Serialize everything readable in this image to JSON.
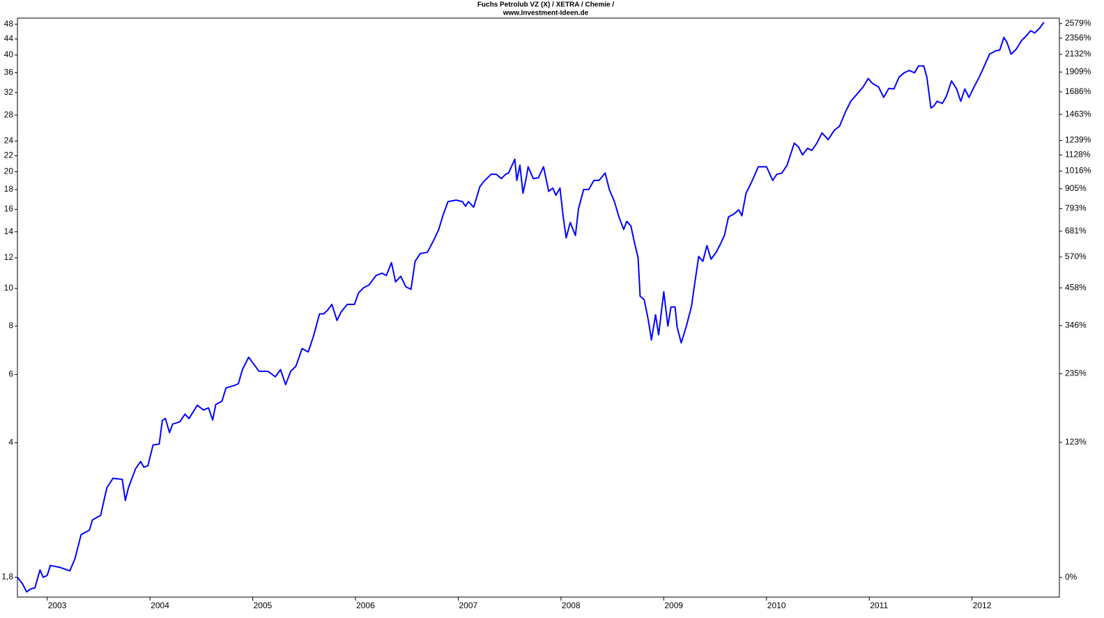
{
  "chart_data": {
    "type": "line",
    "title": "Fuchs Petrolub VZ (X) / XETRA / Chemie /",
    "subtitle": "www.Investment-Ideen.de",
    "x": [
      2002.71,
      2002.76,
      2002.8,
      2002.84,
      2002.88,
      2002.93,
      2002.96,
      2003.0,
      2003.03,
      2003.12,
      2003.22,
      2003.27,
      2003.33,
      2003.41,
      2003.44,
      2003.52,
      2003.58,
      2003.64,
      2003.73,
      2003.76,
      2003.79,
      2003.86,
      2003.91,
      2003.94,
      2003.98,
      2004.03,
      2004.09,
      2004.12,
      2004.15,
      2004.19,
      2004.22,
      2004.29,
      2004.34,
      2004.38,
      2004.46,
      2004.52,
      2004.57,
      2004.61,
      2004.64,
      2004.7,
      2004.74,
      2004.82,
      2004.86,
      2004.9,
      2004.96,
      2005.01,
      2005.06,
      2005.15,
      2005.22,
      2005.27,
      2005.32,
      2005.37,
      2005.42,
      2005.48,
      2005.54,
      2005.59,
      2005.65,
      2005.69,
      2005.73,
      2005.77,
      2005.82,
      2005.86,
      2005.92,
      2005.99,
      2006.03,
      2006.08,
      2006.13,
      2006.2,
      2006.26,
      2006.3,
      2006.35,
      2006.39,
      2006.44,
      2006.49,
      2006.54,
      2006.58,
      2006.63,
      2006.7,
      2006.76,
      2006.81,
      2006.85,
      2006.9,
      2006.98,
      2007.04,
      2007.07,
      2007.1,
      2007.15,
      2007.21,
      2007.25,
      2007.32,
      2007.37,
      2007.42,
      2007.46,
      2007.49,
      2007.55,
      2007.57,
      2007.6,
      2007.63,
      2007.66,
      2007.68,
      2007.73,
      2007.78,
      2007.83,
      2007.88,
      2007.92,
      2007.95,
      2007.99,
      2008.02,
      2008.05,
      2008.09,
      2008.14,
      2008.17,
      2008.22,
      2008.27,
      2008.32,
      2008.37,
      2008.43,
      2008.47,
      2008.52,
      2008.56,
      2008.61,
      2008.64,
      2008.68,
      2008.71,
      2008.75,
      2008.77,
      2008.81,
      2008.85,
      2008.88,
      2008.92,
      2008.95,
      2009.0,
      2009.04,
      2009.07,
      2009.11,
      2009.13,
      2009.17,
      2009.22,
      2009.27,
      2009.3,
      2009.34,
      2009.38,
      2009.42,
      2009.46,
      2009.51,
      2009.55,
      2009.59,
      2009.63,
      2009.68,
      2009.73,
      2009.76,
      2009.8,
      2009.85,
      2009.92,
      2010.0,
      2010.06,
      2010.1,
      2010.15,
      2010.2,
      2010.27,
      2010.31,
      2010.35,
      2010.4,
      2010.44,
      2010.49,
      2010.54,
      2010.6,
      2010.66,
      2010.71,
      2010.77,
      2010.82,
      2010.88,
      2010.94,
      2010.99,
      2011.03,
      2011.09,
      2011.14,
      2011.19,
      2011.24,
      2011.29,
      2011.34,
      2011.39,
      2011.44,
      2011.48,
      2011.53,
      2011.56,
      2011.6,
      2011.63,
      2011.66,
      2011.71,
      2011.75,
      2011.8,
      2011.85,
      2011.89,
      2011.93,
      2011.97,
      2012.02,
      2012.07,
      2012.12,
      2012.17,
      2012.23,
      2012.27,
      2012.31,
      2012.34,
      2012.38,
      2012.43,
      2012.48,
      2012.53,
      2012.57,
      2012.61,
      2012.66,
      2012.7
    ],
    "series": [
      {
        "color": "#0000ff",
        "values": [
          1.8,
          1.73,
          1.65,
          1.68,
          1.69,
          1.88,
          1.8,
          1.82,
          1.93,
          1.91,
          1.87,
          2.01,
          2.32,
          2.38,
          2.53,
          2.6,
          3.06,
          3.24,
          3.22,
          2.84,
          3.06,
          3.43,
          3.58,
          3.46,
          3.49,
          3.95,
          3.97,
          4.57,
          4.62,
          4.25,
          4.47,
          4.53,
          4.74,
          4.62,
          5.0,
          4.86,
          4.92,
          4.58,
          5.02,
          5.12,
          5.54,
          5.62,
          5.68,
          6.18,
          6.65,
          6.38,
          6.12,
          6.11,
          5.92,
          6.18,
          5.65,
          6.12,
          6.3,
          7.0,
          6.86,
          7.52,
          8.6,
          8.6,
          8.8,
          9.1,
          8.27,
          8.7,
          9.1,
          9.1,
          9.75,
          10.05,
          10.2,
          10.8,
          10.95,
          10.8,
          11.66,
          10.4,
          10.75,
          10.1,
          9.95,
          11.75,
          12.3,
          12.4,
          13.3,
          14.2,
          15.4,
          16.75,
          16.9,
          16.75,
          16.3,
          16.75,
          16.2,
          18.3,
          18.9,
          19.7,
          19.7,
          19.2,
          19.7,
          19.85,
          21.55,
          19.0,
          20.8,
          17.6,
          19.2,
          20.6,
          19.2,
          19.3,
          20.6,
          17.8,
          18.15,
          17.4,
          18.15,
          15.4,
          13.5,
          14.8,
          13.7,
          16.05,
          18,
          18,
          19.0,
          19.0,
          19.85,
          18,
          16.75,
          15.4,
          14.2,
          14.9,
          14.5,
          13.3,
          12,
          9.55,
          9.35,
          8.27,
          7.37,
          8.55,
          7.6,
          9.8,
          8,
          8.96,
          8.96,
          7.95,
          7.24,
          8,
          9.0,
          10.25,
          12.1,
          11.75,
          12.9,
          11.9,
          12.4,
          13.0,
          13.7,
          15.3,
          15.55,
          15.95,
          15.4,
          17.6,
          18.7,
          20.6,
          20.6,
          19.0,
          19.7,
          19.85,
          20.8,
          23.7,
          23.2,
          22.1,
          23.0,
          22.7,
          23.7,
          25.2,
          24.2,
          25.6,
          26.2,
          28.6,
          30.4,
          31.7,
          33.1,
          34.8,
          33.8,
          33.1,
          31.1,
          32.8,
          32.7,
          35.1,
          36,
          36.5,
          36,
          37.5,
          37.5,
          35.1,
          29.2,
          29.6,
          30.4,
          30.0,
          31.3,
          34.3,
          32.7,
          30.4,
          32.7,
          31.1,
          33.1,
          35.1,
          37.5,
          40.2,
          41.0,
          41.2,
          44.4,
          43.1,
          40.2,
          41.4,
          43.5,
          44.9,
          46.2,
          45.6,
          47,
          48.6
        ]
      }
    ],
    "xlim": [
      2002.71,
      2012.85
    ],
    "xticks": [
      2003,
      2004,
      2005,
      2006,
      2007,
      2008,
      2009,
      2010,
      2011,
      2012
    ],
    "ylim": [
      1.6,
      49.8
    ],
    "log_scale": true,
    "yticks": [
      {
        "value": 1.8,
        "label": "1,8"
      },
      4,
      6,
      8,
      10,
      12,
      14,
      16,
      18,
      20,
      22,
      24,
      28,
      32,
      36,
      40,
      44,
      48
    ],
    "y2lim": [
      -11,
      2667
    ],
    "y2_log": true,
    "y2ticks": [
      {
        "value": 0,
        "label": "0%"
      },
      {
        "value": 123,
        "label": "123%"
      },
      {
        "value": 235,
        "label": "235%"
      },
      {
        "value": 346,
        "label": "346%"
      },
      {
        "value": 458,
        "label": "458%"
      },
      {
        "value": 570,
        "label": "570%"
      },
      {
        "value": 681,
        "label": "681%"
      },
      {
        "value": 793,
        "label": "793%"
      },
      {
        "value": 905,
        "label": "905%"
      },
      {
        "value": 1016,
        "label": "1016%"
      },
      {
        "value": 1128,
        "label": "1128%"
      },
      {
        "value": 1239,
        "label": "1239%"
      },
      {
        "value": 1463,
        "label": "1463%"
      },
      {
        "value": 1686,
        "label": "1686%"
      },
      {
        "value": 1909,
        "label": "1909%"
      },
      {
        "value": 2132,
        "label": "2132%"
      },
      {
        "value": 2356,
        "label": "2356%"
      },
      {
        "value": 2579,
        "label": "2579%"
      }
    ],
    "grid": false
  }
}
